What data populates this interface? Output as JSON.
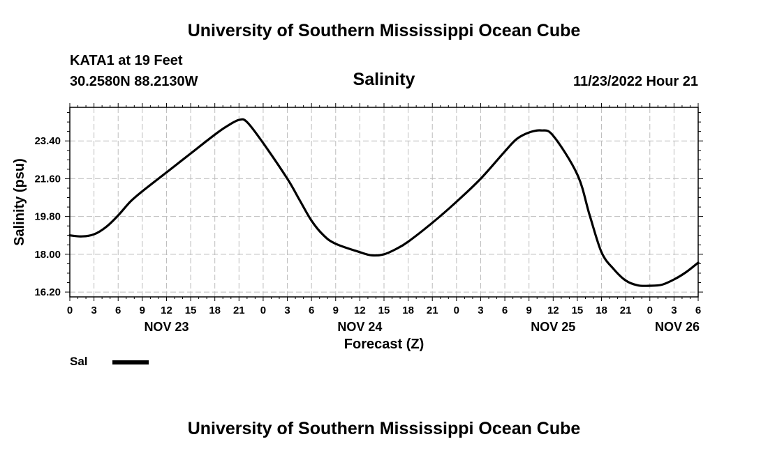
{
  "page": {
    "header_title": "University of Southern Mississippi Ocean Cube",
    "footer_title": "University of Southern Mississippi Ocean Cube",
    "station": "KATA1 at 19 Feet",
    "coordinates": "30.2580N  88.2130W",
    "datetime": "11/23/2022 Hour 21"
  },
  "chart_data": {
    "type": "line",
    "title": "Salinity",
    "xlabel": "Forecast (Z)",
    "ylabel": "Salinity (psu)",
    "x_tick_labels": [
      "0",
      "3",
      "6",
      "9",
      "12",
      "15",
      "18",
      "21",
      "0",
      "3",
      "6",
      "9",
      "12",
      "15",
      "18",
      "21",
      "0",
      "3",
      "6",
      "9",
      "12",
      "15",
      "18",
      "21",
      "0",
      "3",
      "6"
    ],
    "date_labels": [
      {
        "label": "NOV 23",
        "tick_index": 4
      },
      {
        "label": "NOV 24",
        "tick_index": 12
      },
      {
        "label": "NOV 25",
        "tick_index": 20
      },
      {
        "label": "NOV 26",
        "tick_index": 26
      }
    ],
    "y_ticks": [
      16.2,
      18.0,
      19.8,
      21.6,
      23.4
    ],
    "y_tick_labels": [
      "16.20",
      "18.00",
      "19.80",
      "21.60",
      "23.40"
    ],
    "ylim": [
      15.97,
      25.0
    ],
    "xlim_hours": [
      0,
      78
    ],
    "grid": true,
    "legend_position": "bottom-left",
    "series": [
      {
        "name": "Sal",
        "color": "#000000",
        "x_hours": [
          0,
          1.5,
          3,
          4.5,
          6,
          7.5,
          9,
          12,
          15,
          18,
          19.5,
          21,
          22,
          24,
          27,
          28.5,
          30,
          31.5,
          33,
          36,
          37.5,
          39,
          40.5,
          42,
          45,
          48,
          51,
          54,
          55.5,
          57,
          58.5,
          60,
          63,
          64.5,
          66,
          67.5,
          69,
          70.5,
          72,
          73.5,
          75,
          76.5,
          78
        ],
        "values": [
          18.9,
          18.85,
          18.95,
          19.3,
          19.85,
          20.5,
          21.0,
          21.9,
          22.8,
          23.7,
          24.1,
          24.4,
          24.3,
          23.3,
          21.6,
          20.6,
          19.6,
          18.9,
          18.5,
          18.1,
          17.95,
          18.0,
          18.25,
          18.6,
          19.5,
          20.5,
          21.6,
          22.9,
          23.5,
          23.8,
          23.9,
          23.65,
          21.8,
          19.9,
          18.1,
          17.3,
          16.75,
          16.52,
          16.5,
          16.55,
          16.8,
          17.15,
          17.6
        ]
      }
    ]
  }
}
